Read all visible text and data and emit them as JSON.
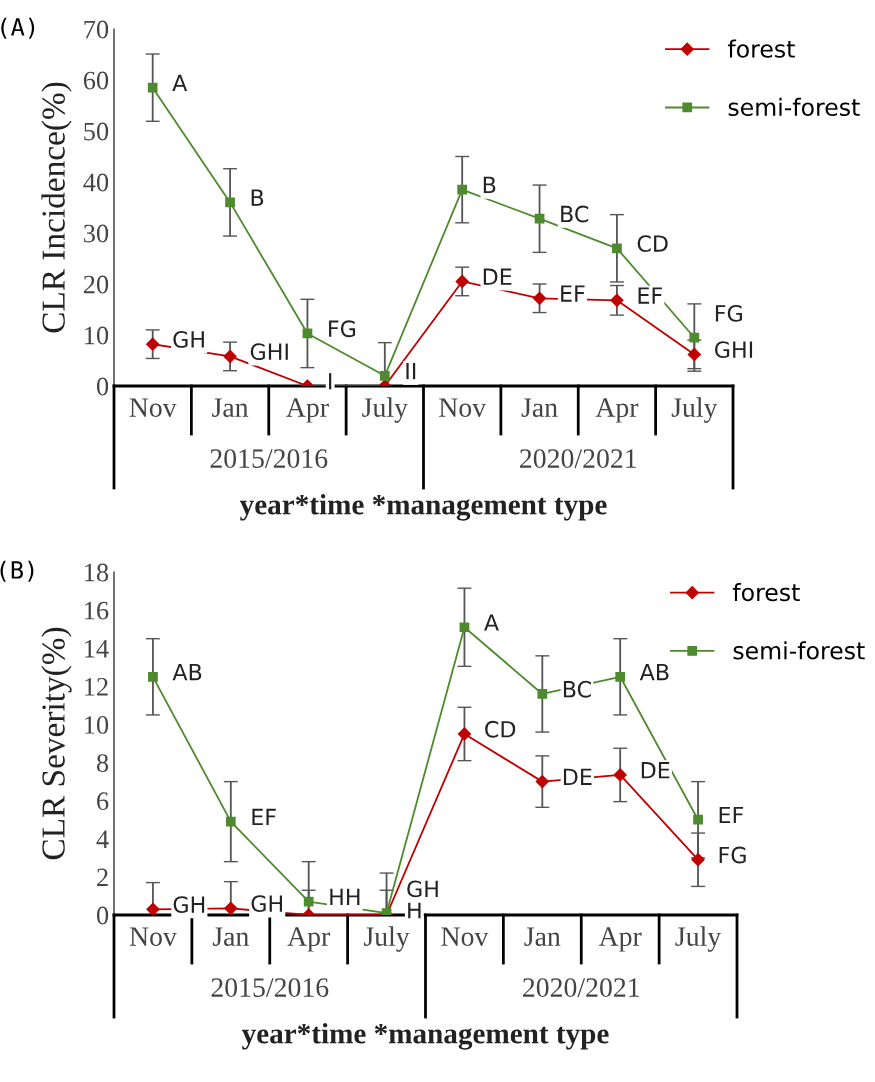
{
  "chart_data": [
    {
      "type": "line",
      "title": "(A)",
      "ylabel": "CLR Incidence(%)",
      "xlabel": "year*time *management type",
      "categories": [
        "Nov",
        "Jan",
        "Apr",
        "July",
        "Nov",
        "Jan",
        "Apr",
        "July"
      ],
      "annotations": [
        "2015/2016",
        "2020/2021"
      ],
      "ylim": [
        0,
        70
      ],
      "yticks": [
        0,
        10,
        20,
        30,
        40,
        50,
        60,
        70
      ],
      "grid": false,
      "legend": "top right",
      "line_style": "solid",
      "series": [
        {
          "name": "forest",
          "color": "#c00000",
          "marker": "diamond",
          "values": [
            8.2,
            5.8,
            0,
            0,
            20.5,
            17.2,
            16.8,
            6.2
          ],
          "errors": [
            2.8,
            2.8,
            null,
            null,
            2.8,
            2.8,
            2.9,
            2.8
          ],
          "value_labels": [
            "GH",
            "GHI",
            "I",
            null,
            "DE",
            "EF",
            "EF",
            "GHI"
          ]
        },
        {
          "name": "semi-forest",
          "color": "#4e8a2e",
          "marker": "square",
          "values": [
            58.5,
            36,
            10.3,
            2,
            38.5,
            32.8,
            27,
            9.5
          ],
          "errors": [
            6.6,
            6.6,
            6.7,
            6.5,
            6.5,
            6.6,
            6.6,
            6.6
          ],
          "value_labels": [
            "A",
            "B",
            "FG",
            "II",
            "B",
            "BC",
            "CD",
            "FG"
          ]
        }
      ]
    },
    {
      "type": "line",
      "title": "(B)",
      "ylabel": "CLR Severity(%)",
      "xlabel": "year*time *management type",
      "categories": [
        "Nov",
        "Jan",
        "Apr",
        "July",
        "Nov",
        "Jan",
        "Apr",
        "July"
      ],
      "annotations": [
        "2015/2016",
        "2020/2021"
      ],
      "ylim": [
        0,
        18
      ],
      "yticks": [
        0,
        2,
        4,
        6,
        8,
        10,
        12,
        14,
        16,
        18
      ],
      "grid": false,
      "legend": "top right",
      "line_style": "solid",
      "series": [
        {
          "name": "forest",
          "color": "#c00000",
          "marker": "diamond",
          "values": [
            0.3,
            0.35,
            0,
            0,
            9.5,
            7,
            7.35,
            2.9
          ],
          "errors": [
            1.4,
            1.4,
            1.3,
            1.3,
            1.4,
            1.35,
            1.4,
            1.4
          ],
          "value_labels": [
            "GH",
            "GH",
            null,
            "H",
            "CD",
            "DE",
            "DE",
            "FG"
          ]
        },
        {
          "name": "semi-forest",
          "color": "#4e8a2e",
          "marker": "square",
          "values": [
            12.5,
            4.9,
            0.7,
            0.1,
            15.1,
            11.6,
            12.5,
            5
          ],
          "errors": [
            2,
            2.1,
            2.1,
            2.1,
            2.05,
            2,
            2,
            2
          ],
          "value_labels": [
            "AB",
            "EF",
            "HH",
            "GH",
            "A",
            "BC",
            "AB",
            "EF"
          ]
        }
      ]
    }
  ]
}
